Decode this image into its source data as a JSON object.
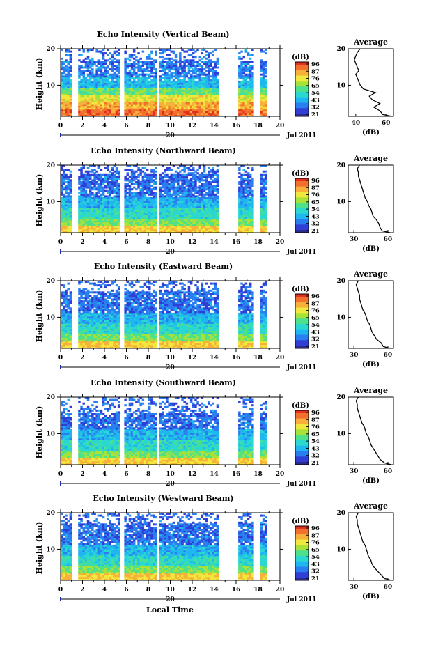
{
  "colors": [
    "#2a2a8a",
    "#2f3fd6",
    "#2a7ef0",
    "#1eb7f0",
    "#2ad8cf",
    "#4fe08a",
    "#a6e23a",
    "#f0e83a",
    "#f7b13a",
    "#f2702e",
    "#e0301f"
  ],
  "figure": {
    "date_label": "Jul 2011",
    "xlabel": "Local Time",
    "colorbar_unit": "(dB)",
    "colorbar_ticks": [
      "96",
      "87",
      "76",
      "65",
      "54",
      "43",
      "32",
      "21"
    ],
    "avg_title": "Average",
    "avg_xlabel": "(dB)",
    "day_label": "20",
    "ylabel": "Height (km)"
  },
  "chart_data": [
    {
      "type": "heatmap",
      "title": "Echo Intensity (Vertical Beam)",
      "xlabel": "Local Time",
      "ylabel": "Height (km)",
      "x_ticks": [
        "0",
        "2",
        "4",
        "6",
        "8",
        "10",
        "12",
        "14",
        "16",
        "18",
        "20"
      ],
      "xlim": [
        0,
        20
      ],
      "y_ticks": [
        "10",
        "20"
      ],
      "ylim": [
        1.5,
        20
      ],
      "colorbar": {
        "unit": "(dB)",
        "ticks": [
          96,
          87,
          76,
          65,
          54,
          43,
          32,
          21
        ]
      },
      "data_gaps_hours": [
        [
          1.0,
          1.6
        ],
        [
          5.5,
          5.8
        ],
        [
          8.9,
          9.1
        ],
        [
          14.5,
          16.3
        ],
        [
          17.7,
          18.3
        ],
        [
          18.8,
          20
        ]
      ],
      "average_profile": {
        "title": "Average",
        "xlabel": "(dB)",
        "x_ticks": [
          "40",
          "60"
        ],
        "xlim": [
          35,
          65
        ],
        "y_ticks": [
          "10",
          "20"
        ],
        "height": [
          1.5,
          2,
          3,
          4,
          5,
          6,
          7,
          8,
          9,
          10,
          11,
          12,
          13,
          14,
          15,
          16,
          17,
          18,
          19,
          20
        ],
        "value": [
          64,
          58,
          56,
          52,
          56,
          51,
          49,
          53,
          45,
          43,
          42,
          41,
          40,
          42,
          41,
          40,
          39,
          40,
          41,
          43
        ]
      }
    },
    {
      "type": "heatmap",
      "title": "Echo Intensity (Northward Beam)",
      "xlabel": "Local Time",
      "ylabel": "Height (km)",
      "x_ticks": [
        "0",
        "2",
        "4",
        "6",
        "8",
        "10",
        "12",
        "14",
        "16",
        "18",
        "20"
      ],
      "xlim": [
        0,
        20
      ],
      "y_ticks": [
        "10",
        "20"
      ],
      "ylim": [
        1.5,
        20
      ],
      "colorbar": {
        "unit": "(dB)",
        "ticks": [
          96,
          87,
          76,
          65,
          54,
          43,
          32,
          21
        ]
      },
      "data_gaps_hours": [
        [
          1.0,
          1.6
        ],
        [
          5.5,
          5.8
        ],
        [
          8.9,
          9.1
        ],
        [
          14.5,
          16.3
        ],
        [
          17.7,
          18.3
        ],
        [
          18.8,
          20
        ]
      ],
      "average_profile": {
        "title": "Average",
        "xlabel": "(dB)",
        "x_ticks": [
          "30",
          "60"
        ],
        "xlim": [
          25,
          65
        ],
        "y_ticks": [
          "10",
          "20"
        ],
        "height": [
          1.5,
          2,
          3,
          4,
          5,
          6,
          7,
          8,
          9,
          10,
          11,
          12,
          13,
          14,
          15,
          16,
          17,
          18,
          19,
          20
        ],
        "value": [
          62,
          55,
          53,
          52,
          50,
          47,
          46,
          45,
          43,
          42,
          40,
          39,
          38,
          37,
          36,
          35,
          34,
          34,
          33,
          35
        ]
      }
    },
    {
      "type": "heatmap",
      "title": "Echo Intensity (Eastward Beam)",
      "xlabel": "Local Time",
      "ylabel": "Height (km)",
      "x_ticks": [
        "0",
        "2",
        "4",
        "6",
        "8",
        "10",
        "12",
        "14",
        "16",
        "18",
        "20"
      ],
      "xlim": [
        0,
        20
      ],
      "y_ticks": [
        "10",
        "20"
      ],
      "ylim": [
        1.5,
        20
      ],
      "colorbar": {
        "unit": "(dB)",
        "ticks": [
          96,
          87,
          76,
          65,
          54,
          43,
          32,
          21
        ]
      },
      "data_gaps_hours": [
        [
          1.0,
          1.6
        ],
        [
          5.5,
          5.8
        ],
        [
          8.9,
          9.1
        ],
        [
          14.5,
          16.3
        ],
        [
          17.7,
          18.3
        ],
        [
          18.8,
          20
        ]
      ],
      "average_profile": {
        "title": "Average",
        "xlabel": "(dB)",
        "x_ticks": [
          "30",
          "60"
        ],
        "xlim": [
          25,
          65
        ],
        "y_ticks": [
          "10",
          "20"
        ],
        "height": [
          1.5,
          2,
          3,
          4,
          5,
          6,
          7,
          8,
          9,
          10,
          11,
          12,
          13,
          14,
          15,
          16,
          17,
          18,
          19,
          20
        ],
        "value": [
          62,
          56,
          54,
          50,
          48,
          46,
          45,
          44,
          42,
          41,
          40,
          38,
          37,
          36,
          35,
          35,
          34,
          33,
          32,
          34
        ]
      }
    },
    {
      "type": "heatmap",
      "title": "Echo Intensity (Southward Beam)",
      "xlabel": "Local Time",
      "ylabel": "Height (km)",
      "x_ticks": [
        "0",
        "2",
        "4",
        "6",
        "8",
        "10",
        "12",
        "14",
        "16",
        "18",
        "20"
      ],
      "xlim": [
        0,
        20
      ],
      "y_ticks": [
        "10",
        "20"
      ],
      "ylim": [
        1.5,
        20
      ],
      "colorbar": {
        "unit": "(dB)",
        "ticks": [
          96,
          87,
          76,
          65,
          54,
          43,
          32,
          21
        ]
      },
      "data_gaps_hours": [
        [
          1.0,
          1.6
        ],
        [
          5.5,
          5.8
        ],
        [
          8.9,
          9.1
        ],
        [
          14.5,
          16.3
        ],
        [
          17.7,
          18.3
        ],
        [
          18.8,
          20
        ]
      ],
      "average_profile": {
        "title": "Average",
        "xlabel": "(dB)",
        "x_ticks": [
          "30",
          "60"
        ],
        "xlim": [
          25,
          65
        ],
        "y_ticks": [
          "10",
          "20"
        ],
        "height": [
          1.5,
          2,
          3,
          4,
          5,
          6,
          7,
          8,
          9,
          10,
          11,
          12,
          13,
          14,
          15,
          16,
          17,
          18,
          19,
          20
        ],
        "value": [
          63,
          57,
          53,
          51,
          49,
          47,
          45,
          44,
          43,
          41,
          40,
          39,
          37,
          36,
          35,
          34,
          33,
          33,
          32,
          34
        ]
      }
    },
    {
      "type": "heatmap",
      "title": "Echo Intensity (Westward Beam)",
      "xlabel": "Local Time",
      "ylabel": "Height (km)",
      "x_ticks": [
        "0",
        "2",
        "4",
        "6",
        "8",
        "10",
        "12",
        "14",
        "16",
        "18",
        "20"
      ],
      "xlim": [
        0,
        20
      ],
      "y_ticks": [
        "10",
        "20"
      ],
      "ylim": [
        1.5,
        20
      ],
      "colorbar": {
        "unit": "(dB)",
        "ticks": [
          96,
          87,
          76,
          65,
          54,
          43,
          32,
          21
        ]
      },
      "data_gaps_hours": [
        [
          1.0,
          1.6
        ],
        [
          5.5,
          5.8
        ],
        [
          8.9,
          9.1
        ],
        [
          14.5,
          16.3
        ],
        [
          17.7,
          18.3
        ],
        [
          18.8,
          20
        ]
      ],
      "average_profile": {
        "title": "Average",
        "xlabel": "(dB)",
        "x_ticks": [
          "30",
          "60"
        ],
        "xlim": [
          25,
          65
        ],
        "y_ticks": [
          "10",
          "20"
        ],
        "height": [
          1.5,
          2,
          3,
          4,
          5,
          6,
          7,
          8,
          9,
          10,
          11,
          12,
          13,
          14,
          15,
          16,
          17,
          18,
          19,
          20
        ],
        "value": [
          63,
          57,
          54,
          51,
          48,
          46,
          45,
          43,
          42,
          41,
          40,
          38,
          37,
          36,
          35,
          34,
          33,
          33,
          32,
          34
        ]
      }
    }
  ]
}
